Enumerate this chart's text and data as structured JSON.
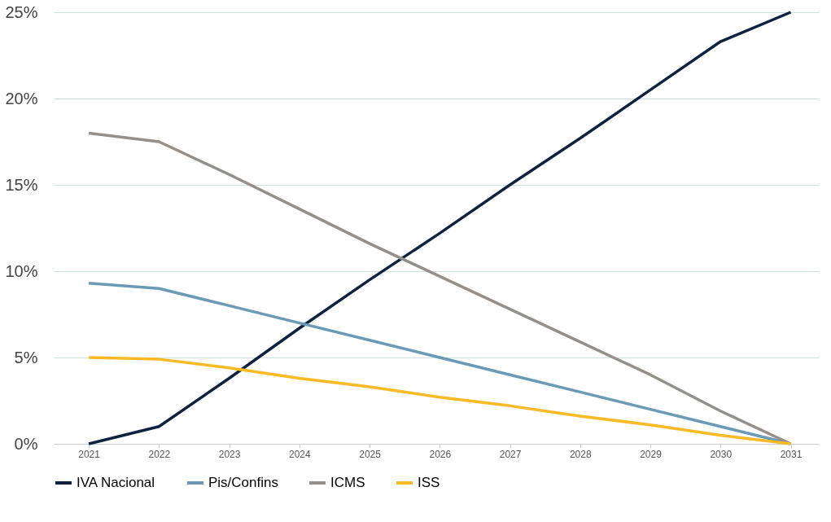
{
  "chart_data": {
    "type": "line",
    "categories": [
      "2021",
      "2022",
      "2023",
      "2024",
      "2025",
      "2026",
      "2027",
      "2028",
      "2029",
      "2030",
      "2031"
    ],
    "ylim": [
      0,
      25
    ],
    "yticks": [
      {
        "value": 0,
        "label": "0%"
      },
      {
        "value": 5,
        "label": "5%"
      },
      {
        "value": 10,
        "label": "10%"
      },
      {
        "value": 15,
        "label": "15%"
      },
      {
        "value": 20,
        "label": "20%"
      },
      {
        "value": 25,
        "label": "25%"
      }
    ],
    "grid": "y",
    "legend": "bottom",
    "marker": "none",
    "line_style": "solid",
    "series": [
      {
        "name": "IVA Nacional",
        "color": "#0f2340",
        "values": [
          0,
          1.0,
          3.8,
          6.7,
          9.5,
          12.2,
          15.0,
          17.7,
          20.5,
          23.3,
          25
        ]
      },
      {
        "name": "Pis/Confins",
        "color": "#6a9ab5",
        "values": [
          9.3,
          9.0,
          8.0,
          7.0,
          6.0,
          5.0,
          4.0,
          3.0,
          2.0,
          1.0,
          0
        ]
      },
      {
        "name": "ICMS",
        "color": "#948f8a",
        "values": [
          18.0,
          17.5,
          15.6,
          13.6,
          11.6,
          9.7,
          7.8,
          5.9,
          4.0,
          1.9,
          0
        ]
      },
      {
        "name": "ISS",
        "color": "#fbb925",
        "values": [
          5.0,
          4.9,
          4.4,
          3.8,
          3.3,
          2.7,
          2.2,
          1.6,
          1.1,
          0.5,
          0
        ]
      }
    ]
  }
}
